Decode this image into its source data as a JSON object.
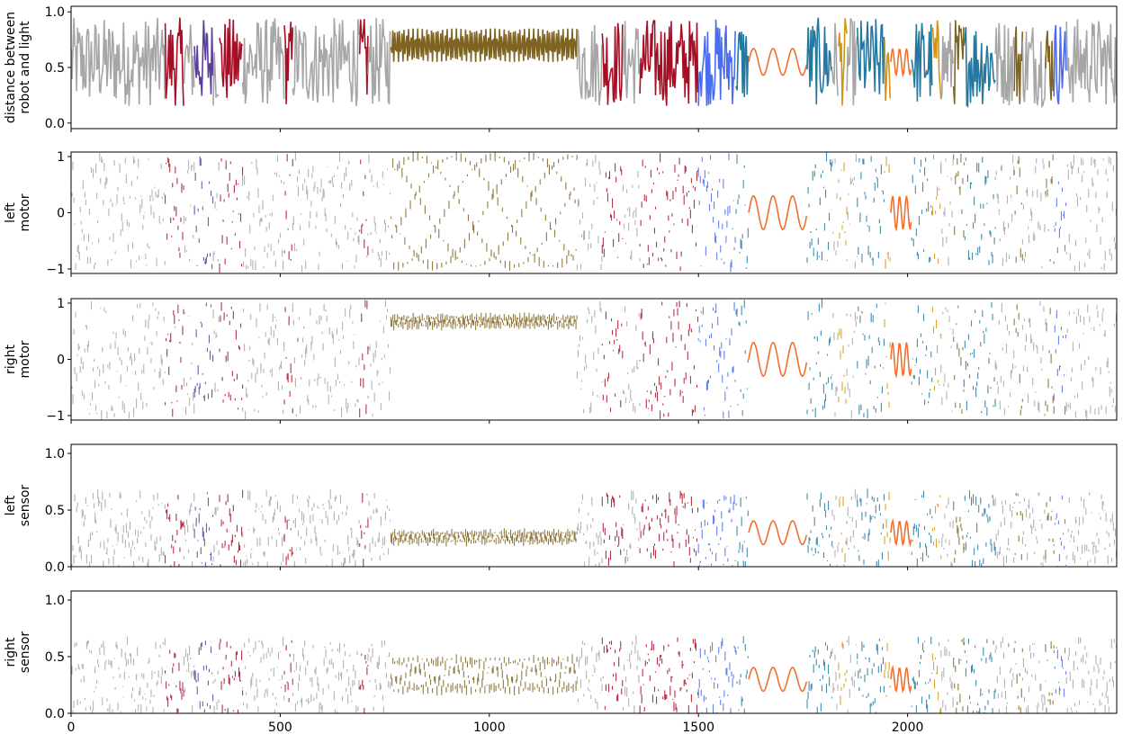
{
  "chart_data": {
    "type": "line",
    "x_range": [
      0,
      2500
    ],
    "x_ticks": [
      0,
      500,
      1000,
      1500,
      2000
    ],
    "x_tick_labels": [
      "0",
      "500",
      "1000",
      "1500",
      "2000"
    ],
    "segment_colors": {
      "background": "#a6a6a6",
      "red": "#a50f26",
      "purple": "#5e3c99",
      "olive": "#7f6421",
      "blue": "#4a6cf0",
      "orange": "#f07030",
      "teal": "#2478a0",
      "gold": "#d4940c"
    },
    "segments": [
      {
        "x": [
          0,
          225
        ],
        "color": "background"
      },
      {
        "x": [
          225,
          270
        ],
        "color": "red"
      },
      {
        "x": [
          270,
          295
        ],
        "color": "background"
      },
      {
        "x": [
          295,
          340
        ],
        "color": "purple"
      },
      {
        "x": [
          340,
          355
        ],
        "color": "background"
      },
      {
        "x": [
          355,
          410
        ],
        "color": "red"
      },
      {
        "x": [
          410,
          510
        ],
        "color": "background"
      },
      {
        "x": [
          510,
          530
        ],
        "color": "red"
      },
      {
        "x": [
          530,
          690
        ],
        "color": "background"
      },
      {
        "x": [
          690,
          710
        ],
        "color": "red"
      },
      {
        "x": [
          710,
          765
        ],
        "color": "background"
      },
      {
        "x": [
          765,
          1210
        ],
        "color": "olive"
      },
      {
        "x": [
          1210,
          1270
        ],
        "color": "background"
      },
      {
        "x": [
          1270,
          1320
        ],
        "color": "red"
      },
      {
        "x": [
          1320,
          1360
        ],
        "color": "background"
      },
      {
        "x": [
          1360,
          1500
        ],
        "color": "red"
      },
      {
        "x": [
          1500,
          1590
        ],
        "color": "blue"
      },
      {
        "x": [
          1590,
          1620
        ],
        "color": "teal"
      },
      {
        "x": [
          1620,
          1760
        ],
        "color": "orange"
      },
      {
        "x": [
          1760,
          1820
        ],
        "color": "teal"
      },
      {
        "x": [
          1820,
          1835
        ],
        "color": "background"
      },
      {
        "x": [
          1835,
          1855
        ],
        "color": "gold"
      },
      {
        "x": [
          1855,
          1880
        ],
        "color": "background"
      },
      {
        "x": [
          1880,
          1945
        ],
        "color": "teal"
      },
      {
        "x": [
          1945,
          1960
        ],
        "color": "gold"
      },
      {
        "x": [
          1960,
          2010
        ],
        "color": "orange"
      },
      {
        "x": [
          2010,
          2060
        ],
        "color": "teal"
      },
      {
        "x": [
          2060,
          2080
        ],
        "color": "gold"
      },
      {
        "x": [
          2080,
          2110
        ],
        "color": "background"
      },
      {
        "x": [
          2110,
          2135
        ],
        "color": "olive"
      },
      {
        "x": [
          2135,
          2210
        ],
        "color": "teal"
      },
      {
        "x": [
          2210,
          2255
        ],
        "color": "background"
      },
      {
        "x": [
          2255,
          2275
        ],
        "color": "olive"
      },
      {
        "x": [
          2275,
          2330
        ],
        "color": "background"
      },
      {
        "x": [
          2330,
          2350
        ],
        "color": "olive"
      },
      {
        "x": [
          2350,
          2380
        ],
        "color": "blue"
      },
      {
        "x": [
          2380,
          2500
        ],
        "color": "background"
      }
    ],
    "panels": [
      {
        "ylabel": [
          "distance between",
          "robot and light"
        ],
        "ylim": [
          -0.05,
          1.05
        ],
        "yticks": [
          0.0,
          0.5,
          1.0
        ],
        "ytick_labels": [
          "0.0",
          "0.5",
          "1.0"
        ],
        "signal": {
          "center": 0.55,
          "amplitude": 0.4,
          "style": "line",
          "olive_band": [
            0.55,
            0.85
          ]
        }
      },
      {
        "ylabel": [
          "left",
          "motor"
        ],
        "ylim": [
          -1.08,
          1.08
        ],
        "yticks": [
          -1,
          0,
          1
        ],
        "ytick_labels": [
          "−1",
          "0",
          "1"
        ],
        "signal": {
          "center": 0.0,
          "amplitude": 1.0,
          "style": "scatter",
          "olive_band": [
            -0.95,
            1.0
          ]
        }
      },
      {
        "ylabel": [
          "right",
          "motor"
        ],
        "ylim": [
          -1.08,
          1.08
        ],
        "yticks": [
          -1,
          0,
          1
        ],
        "ytick_labels": [
          "−1",
          "0",
          "1"
        ],
        "signal": {
          "center": 0.0,
          "amplitude": 1.0,
          "style": "scatter",
          "olive_band": [
            0.6,
            0.75
          ]
        }
      },
      {
        "ylabel": [
          "left",
          "sensor"
        ],
        "ylim": [
          0.0,
          1.08
        ],
        "yticks": [
          0.0,
          0.5,
          1.0
        ],
        "ytick_labels": [
          "0.0",
          "0.5",
          "1.0"
        ],
        "signal": {
          "center": 0.3,
          "amplitude": 0.35,
          "style": "scatter",
          "olive_band": [
            0.22,
            0.3
          ]
        }
      },
      {
        "ylabel": [
          "right",
          "sensor"
        ],
        "ylim": [
          0.0,
          1.08
        ],
        "yticks": [
          0.0,
          0.5,
          1.0
        ],
        "ytick_labels": [
          "0.0",
          "0.5",
          "1.0"
        ],
        "signal": {
          "center": 0.3,
          "amplitude": 0.35,
          "style": "scatter",
          "olive_band": [
            0.2,
            0.48
          ]
        }
      }
    ]
  }
}
